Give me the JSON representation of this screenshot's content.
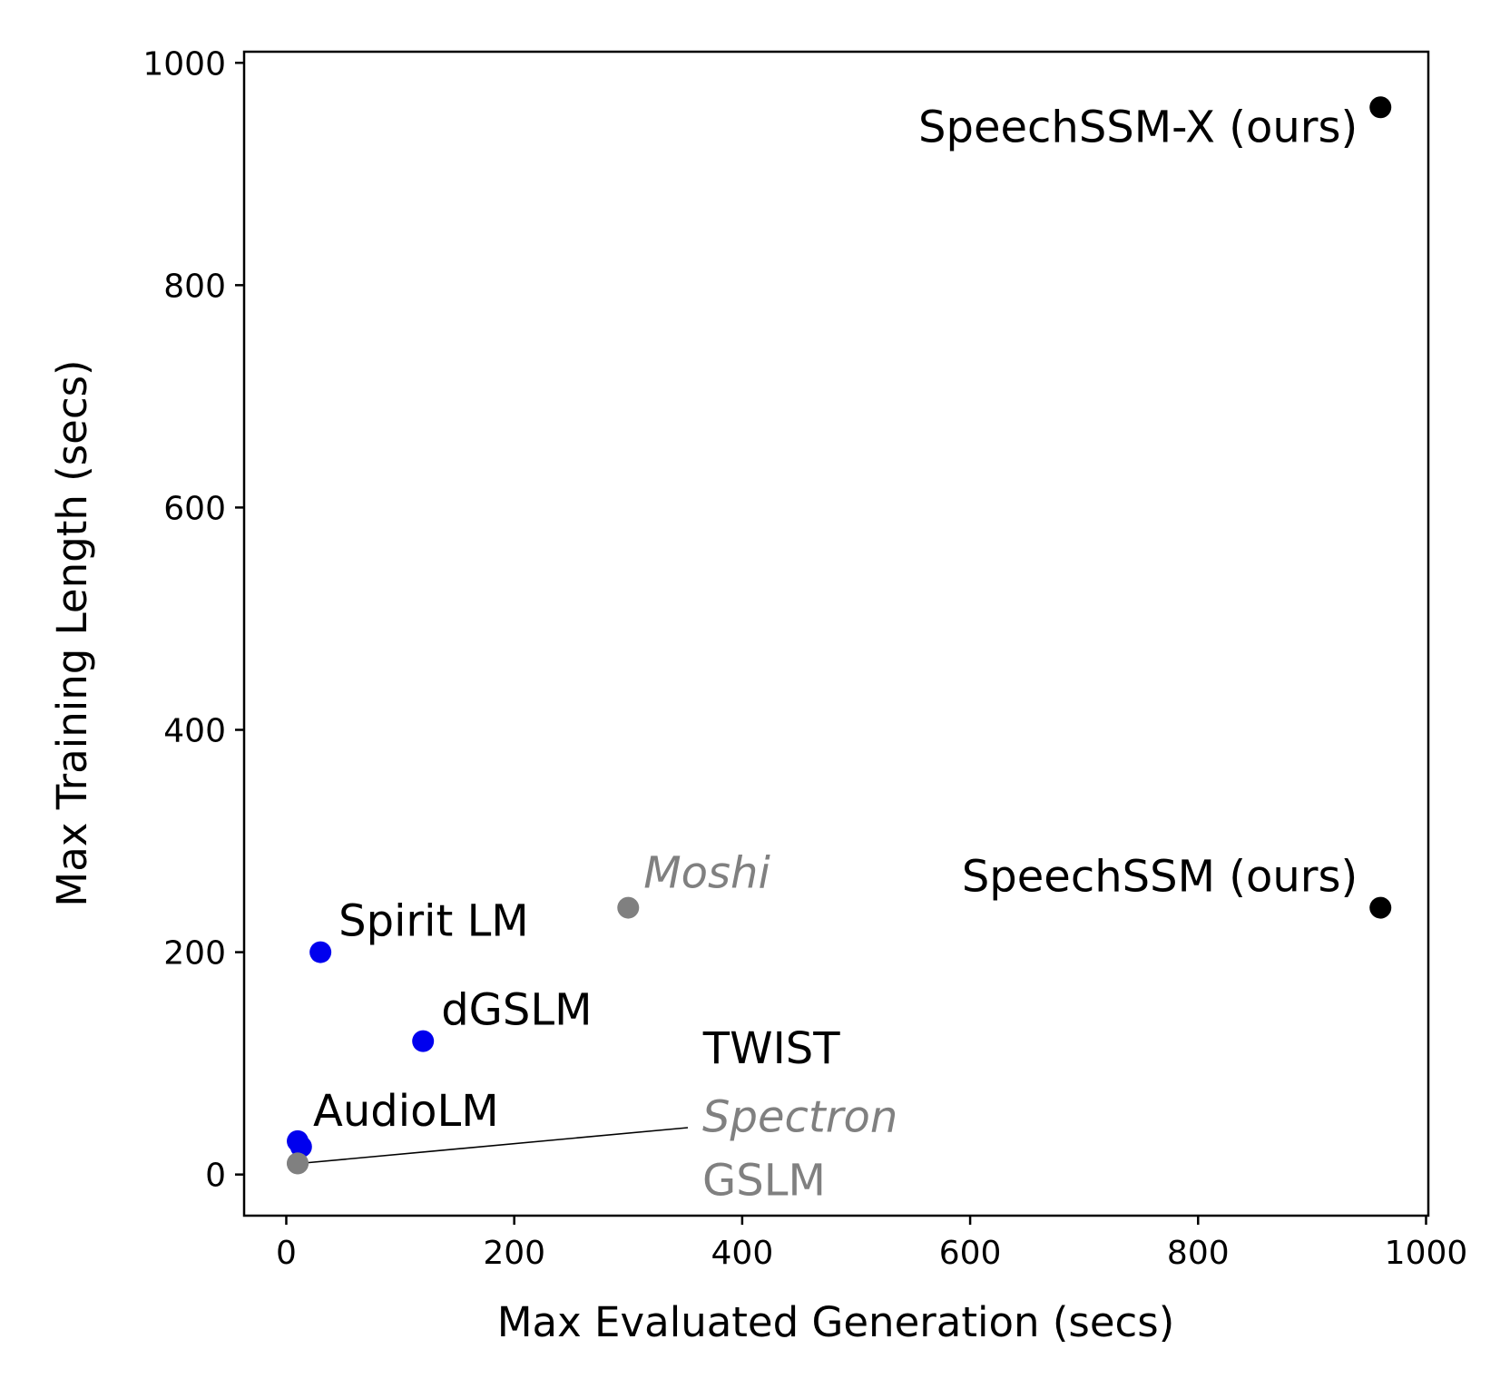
{
  "chart_data": {
    "type": "scatter",
    "title": "",
    "xlabel": "Max Evaluated Generation (secs)",
    "ylabel": "Max Training Length (secs)",
    "xlim": [
      -37,
      1002
    ],
    "ylim": [
      -37,
      1010
    ],
    "xticks": [
      0,
      200,
      400,
      600,
      800,
      1000
    ],
    "yticks": [
      0,
      200,
      400,
      600,
      800,
      1000
    ],
    "grid": false,
    "colors": {
      "blue": "#0000ee",
      "gray": "#808080",
      "black": "#000000"
    },
    "points": [
      {
        "name": "SpeechSSM-X (ours)",
        "x": 960,
        "y": 960,
        "color": "black",
        "italic": false
      },
      {
        "name": "SpeechSSM (ours)",
        "x": 960,
        "y": 240,
        "color": "black",
        "italic": false
      },
      {
        "name": "Moshi",
        "x": 300,
        "y": 240,
        "color": "gray",
        "italic": true
      },
      {
        "name": "Spirit LM",
        "x": 30,
        "y": 200,
        "color": "blue",
        "italic": false
      },
      {
        "name": "dGSLM",
        "x": 120,
        "y": 120,
        "color": "blue",
        "italic": false
      },
      {
        "name": "AudioLM",
        "x": 10,
        "y": 30,
        "color": "blue",
        "italic": false
      },
      {
        "name": "TWIST",
        "x": 13,
        "y": 25,
        "color": "blue",
        "italic": false
      },
      {
        "name": "Spectron",
        "x": 10,
        "y": 10,
        "color": "gray",
        "italic": true
      },
      {
        "name": "GSLM",
        "x": 10,
        "y": 10,
        "color": "gray",
        "italic": false
      }
    ]
  }
}
